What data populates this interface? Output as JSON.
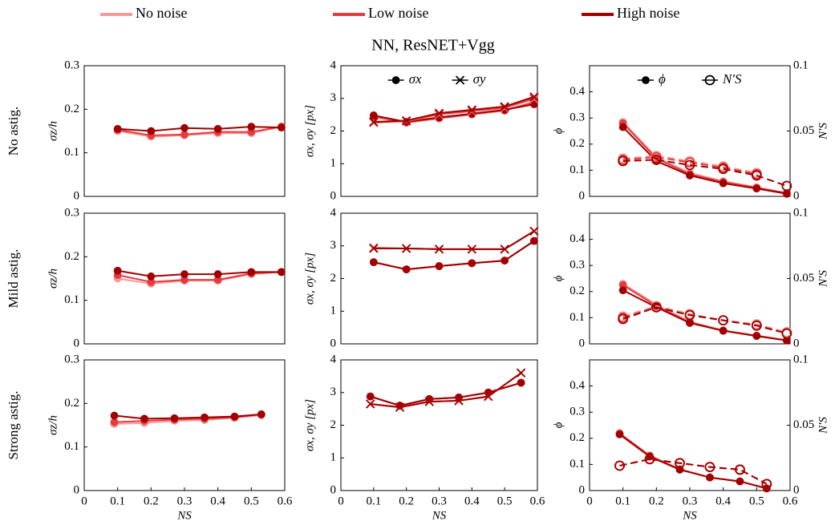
{
  "title": "NN, ResNET+Vgg",
  "row_labels": [
    "No astig.",
    "Mild astig.",
    "Strong astig."
  ],
  "chart_data": [
    {
      "type": "line",
      "ylabel": "σz/h",
      "xlim": [
        0,
        0.6
      ],
      "ylim": [
        0,
        0.3
      ],
      "yticks": [
        0,
        0.1,
        0.2,
        0.3
      ],
      "x": [
        0.1,
        0.2,
        0.3,
        0.4,
        0.5,
        0.59
      ],
      "series": [
        {
          "name": "No noise",
          "color": "#f59a9a",
          "marker": "circle",
          "values": [
            0.15,
            0.137,
            0.14,
            0.145,
            0.145,
            0.16
          ]
        },
        {
          "name": "Low noise",
          "color": "#e83a3e",
          "marker": "circle",
          "values": [
            0.153,
            0.14,
            0.142,
            0.148,
            0.148,
            0.16
          ]
        },
        {
          "name": "High noise",
          "color": "#a00000",
          "marker": "circle",
          "values": [
            0.155,
            0.15,
            0.157,
            0.155,
            0.16,
            0.158
          ]
        }
      ]
    },
    {
      "type": "line",
      "ylabel": "σx, σy [px]",
      "xlim": [
        0,
        0.6
      ],
      "ylim": [
        0,
        4
      ],
      "yticks": [
        0,
        1,
        2,
        3,
        4
      ],
      "x": [
        0.1,
        0.2,
        0.3,
        0.4,
        0.5,
        0.59
      ],
      "marker_legend": [
        {
          "label": "σx",
          "marker": "circle"
        },
        {
          "label": "σy",
          "marker": "x"
        }
      ],
      "series": [
        {
          "name": "No noise",
          "color": "#f59a9a",
          "marker": "circle",
          "values": [
            2.42,
            2.25,
            2.38,
            2.5,
            2.62,
            2.9
          ]
        },
        {
          "name": "Low noise",
          "color": "#e83a3e",
          "marker": "circle",
          "values": [
            2.45,
            2.27,
            2.4,
            2.52,
            2.64,
            2.88
          ]
        },
        {
          "name": "High noise",
          "color": "#a00000",
          "marker": "circle",
          "values": [
            2.48,
            2.28,
            2.42,
            2.53,
            2.65,
            2.82
          ]
        },
        {
          "name": "No noise",
          "color": "#f59a9a",
          "marker": "x",
          "values": [
            2.25,
            2.3,
            2.5,
            2.6,
            2.7,
            2.98
          ]
        },
        {
          "name": "Low noise",
          "color": "#e83a3e",
          "marker": "x",
          "values": [
            2.27,
            2.31,
            2.52,
            2.62,
            2.72,
            3.0
          ]
        },
        {
          "name": "High noise",
          "color": "#a00000",
          "marker": "x",
          "values": [
            2.28,
            2.32,
            2.55,
            2.65,
            2.75,
            3.05
          ]
        }
      ]
    },
    {
      "type": "line",
      "ylabel": "ϕ",
      "y2label": "N′S",
      "xlim": [
        0,
        0.6
      ],
      "ylim": [
        0,
        0.5
      ],
      "yticks": [
        0,
        0.1,
        0.2,
        0.3,
        0.4
      ],
      "y2lim": [
        0,
        0.1
      ],
      "y2ticks": [
        0,
        0.05,
        0.1
      ],
      "x": [
        0.1,
        0.2,
        0.3,
        0.4,
        0.5,
        0.59
      ],
      "marker_legend": [
        {
          "label": "ϕ",
          "marker": "circle"
        },
        {
          "label": "N′S",
          "marker": "open-circle"
        }
      ],
      "series": [
        {
          "name": "No noise",
          "color": "#f59a9a",
          "marker": "circle",
          "values": [
            0.285,
            0.15,
            0.09,
            0.058,
            0.035,
            0.013
          ]
        },
        {
          "name": "Low noise",
          "color": "#e83a3e",
          "marker": "circle",
          "values": [
            0.28,
            0.145,
            0.085,
            0.055,
            0.033,
            0.012
          ]
        },
        {
          "name": "High noise",
          "color": "#a00000",
          "marker": "circle",
          "values": [
            0.265,
            0.135,
            0.08,
            0.05,
            0.03,
            0.01
          ]
        },
        {
          "name": "No noise",
          "color": "#f59a9a",
          "marker": "open-circle",
          "axis": "y2",
          "linestyle": "dashed",
          "values": [
            0.029,
            0.031,
            0.027,
            0.023,
            0.018,
            null
          ]
        },
        {
          "name": "Low noise",
          "color": "#e83a3e",
          "marker": "open-circle",
          "axis": "y2",
          "linestyle": "dashed",
          "values": [
            0.028,
            0.03,
            0.026,
            0.022,
            0.017,
            null
          ]
        },
        {
          "name": "High noise",
          "color": "#a00000",
          "marker": "open-circle",
          "axis": "y2",
          "linestyle": "dashed",
          "values": [
            0.027,
            0.028,
            0.024,
            0.021,
            0.016,
            0.008
          ]
        }
      ]
    },
    {
      "type": "line",
      "ylabel": "σz/h",
      "xlim": [
        0,
        0.6
      ],
      "ylim": [
        0,
        0.3
      ],
      "yticks": [
        0,
        0.1,
        0.2,
        0.3
      ],
      "x": [
        0.1,
        0.2,
        0.3,
        0.4,
        0.5,
        0.59
      ],
      "series": [
        {
          "name": "No noise",
          "color": "#f59a9a",
          "marker": "circle",
          "values": [
            0.15,
            0.138,
            0.145,
            0.145,
            0.16,
            0.165
          ]
        },
        {
          "name": "Low noise",
          "color": "#e83a3e",
          "marker": "circle",
          "values": [
            0.158,
            0.142,
            0.147,
            0.147,
            0.162,
            0.165
          ]
        },
        {
          "name": "High noise",
          "color": "#a00000",
          "marker": "circle",
          "values": [
            0.168,
            0.155,
            0.16,
            0.16,
            0.165,
            0.165
          ]
        }
      ]
    },
    {
      "type": "line",
      "ylabel": "σx, σy [px]",
      "xlim": [
        0,
        0.6
      ],
      "ylim": [
        0,
        4
      ],
      "yticks": [
        0,
        1,
        2,
        3,
        4
      ],
      "x": [
        0.1,
        0.2,
        0.3,
        0.4,
        0.5,
        0.59
      ],
      "series": [
        {
          "name": "No noise",
          "color": "#f59a9a",
          "marker": "circle",
          "values": [
            2.5,
            2.28,
            2.38,
            2.47,
            2.55,
            3.15
          ]
        },
        {
          "name": "Low noise",
          "color": "#e83a3e",
          "marker": "circle",
          "values": [
            2.5,
            2.28,
            2.38,
            2.47,
            2.55,
            3.15
          ]
        },
        {
          "name": "High noise",
          "color": "#a00000",
          "marker": "circle",
          "values": [
            2.5,
            2.28,
            2.38,
            2.47,
            2.55,
            3.15
          ]
        },
        {
          "name": "No noise",
          "color": "#f59a9a",
          "marker": "x",
          "values": [
            2.95,
            2.92,
            2.9,
            2.9,
            2.9,
            3.45
          ]
        },
        {
          "name": "Low noise",
          "color": "#e83a3e",
          "marker": "x",
          "values": [
            2.93,
            2.92,
            2.9,
            2.9,
            2.9,
            3.45
          ]
        },
        {
          "name": "High noise",
          "color": "#a00000",
          "marker": "x",
          "values": [
            2.92,
            2.92,
            2.9,
            2.9,
            2.9,
            3.45
          ]
        }
      ]
    },
    {
      "type": "line",
      "ylabel": "ϕ",
      "y2label": "N′S",
      "xlim": [
        0,
        0.6
      ],
      "ylim": [
        0,
        0.5
      ],
      "yticks": [
        0,
        0.1,
        0.2,
        0.3,
        0.4
      ],
      "y2lim": [
        0,
        0.1
      ],
      "y2ticks": [
        0,
        0.05,
        0.1
      ],
      "x": [
        0.1,
        0.2,
        0.3,
        0.4,
        0.5,
        0.59
      ],
      "series": [
        {
          "name": "No noise",
          "color": "#f59a9a",
          "marker": "circle",
          "values": [
            0.23,
            0.15,
            0.085,
            0.052,
            0.032,
            0.014
          ]
        },
        {
          "name": "Low noise",
          "color": "#e83a3e",
          "marker": "circle",
          "values": [
            0.225,
            0.145,
            0.082,
            0.05,
            0.031,
            0.013
          ]
        },
        {
          "name": "High noise",
          "color": "#a00000",
          "marker": "circle",
          "values": [
            0.205,
            0.14,
            0.08,
            0.05,
            0.03,
            0.013
          ]
        },
        {
          "name": "No noise",
          "color": "#f59a9a",
          "marker": "open-circle",
          "axis": "y2",
          "linestyle": "dashed",
          "values": [
            0.021,
            0.029,
            0.023,
            0.018,
            0.015,
            0.009
          ]
        },
        {
          "name": "Low noise",
          "color": "#e83a3e",
          "marker": "open-circle",
          "axis": "y2",
          "linestyle": "dashed",
          "values": [
            0.02,
            0.028,
            0.022,
            0.018,
            0.014,
            0.008
          ]
        },
        {
          "name": "High noise",
          "color": "#a00000",
          "marker": "open-circle",
          "axis": "y2",
          "linestyle": "dashed",
          "values": [
            0.019,
            0.028,
            0.022,
            0.018,
            0.014,
            0.008
          ]
        }
      ]
    },
    {
      "type": "line",
      "ylabel": "σz/h",
      "xlabel": "NS",
      "xlim": [
        0,
        0.6
      ],
      "ylim": [
        0,
        0.3
      ],
      "yticks": [
        0,
        0.1,
        0.2,
        0.3
      ],
      "xticks": [
        0,
        0.1,
        0.2,
        0.3,
        0.4,
        0.5,
        0.6
      ],
      "x": [
        0.09,
        0.18,
        0.27,
        0.36,
        0.45,
        0.53
      ],
      "series": [
        {
          "name": "No noise",
          "color": "#f59a9a",
          "marker": "circle",
          "values": [
            0.153,
            0.155,
            0.16,
            0.162,
            0.167,
            0.173
          ]
        },
        {
          "name": "Low noise",
          "color": "#e83a3e",
          "marker": "circle",
          "values": [
            0.157,
            0.16,
            0.163,
            0.165,
            0.168,
            0.175
          ]
        },
        {
          "name": "High noise",
          "color": "#a00000",
          "marker": "circle",
          "values": [
            0.172,
            0.165,
            0.166,
            0.168,
            0.17,
            0.175
          ]
        }
      ]
    },
    {
      "type": "line",
      "ylabel": "σx, σy [px]",
      "xlabel": "NS",
      "xlim": [
        0,
        0.6
      ],
      "ylim": [
        0,
        4
      ],
      "yticks": [
        0,
        1,
        2,
        3,
        4
      ],
      "xticks": [
        0,
        0.1,
        0.2,
        0.3,
        0.4,
        0.5,
        0.6
      ],
      "x": [
        0.09,
        0.18,
        0.27,
        0.36,
        0.45,
        0.55
      ],
      "series": [
        {
          "name": "No noise",
          "color": "#f59a9a",
          "marker": "circle",
          "values": [
            2.88,
            2.6,
            2.8,
            2.85,
            3.0,
            3.3
          ]
        },
        {
          "name": "Low noise",
          "color": "#e83a3e",
          "marker": "circle",
          "values": [
            2.88,
            2.6,
            2.8,
            2.85,
            3.0,
            3.3
          ]
        },
        {
          "name": "High noise",
          "color": "#a00000",
          "marker": "circle",
          "values": [
            2.88,
            2.6,
            2.8,
            2.85,
            3.0,
            3.3
          ]
        },
        {
          "name": "No noise",
          "color": "#f59a9a",
          "marker": "x",
          "values": [
            2.65,
            2.55,
            2.72,
            2.75,
            2.88,
            3.6
          ]
        },
        {
          "name": "Low noise",
          "color": "#e83a3e",
          "marker": "x",
          "values": [
            2.65,
            2.55,
            2.72,
            2.75,
            2.88,
            3.6
          ]
        },
        {
          "name": "High noise",
          "color": "#a00000",
          "marker": "x",
          "values": [
            2.65,
            2.55,
            2.72,
            2.75,
            2.88,
            3.6
          ]
        }
      ]
    },
    {
      "type": "line",
      "ylabel": "ϕ",
      "y2label": "N′S",
      "xlabel": "NS",
      "xlim": [
        0,
        0.6
      ],
      "ylim": [
        0,
        0.5
      ],
      "yticks": [
        0,
        0.1,
        0.2,
        0.3,
        0.4
      ],
      "y2lim": [
        0,
        0.1
      ],
      "y2ticks": [
        0,
        0.05,
        0.1
      ],
      "xticks": [
        0,
        0.1,
        0.2,
        0.3,
        0.4,
        0.5,
        0.6
      ],
      "x": [
        0.09,
        0.18,
        0.27,
        0.36,
        0.45,
        0.53
      ],
      "series": [
        {
          "name": "No noise",
          "color": "#f59a9a",
          "marker": "circle",
          "values": [
            0.22,
            0.135,
            0.082,
            0.05,
            0.035,
            0.008
          ]
        },
        {
          "name": "Low noise",
          "color": "#e83a3e",
          "marker": "circle",
          "values": [
            0.218,
            0.132,
            0.081,
            0.05,
            0.035,
            0.008
          ]
        },
        {
          "name": "High noise",
          "color": "#a00000",
          "marker": "circle",
          "values": [
            0.215,
            0.13,
            0.08,
            0.05,
            0.035,
            0.008
          ]
        },
        {
          "name": "No noise",
          "color": "#f59a9a",
          "marker": "open-circle",
          "axis": "y2",
          "linestyle": "dashed",
          "values": [
            0.019,
            0.024,
            0.021,
            0.018,
            0.016,
            0.005
          ]
        },
        {
          "name": "Low noise",
          "color": "#e83a3e",
          "marker": "open-circle",
          "axis": "y2",
          "linestyle": "dashed",
          "values": [
            0.019,
            0.024,
            0.021,
            0.018,
            0.016,
            0.005
          ]
        },
        {
          "name": "High noise",
          "color": "#a00000",
          "marker": "open-circle",
          "axis": "y2",
          "linestyle": "dashed",
          "values": [
            0.019,
            0.024,
            0.021,
            0.018,
            0.016,
            0.005
          ]
        }
      ]
    }
  ]
}
